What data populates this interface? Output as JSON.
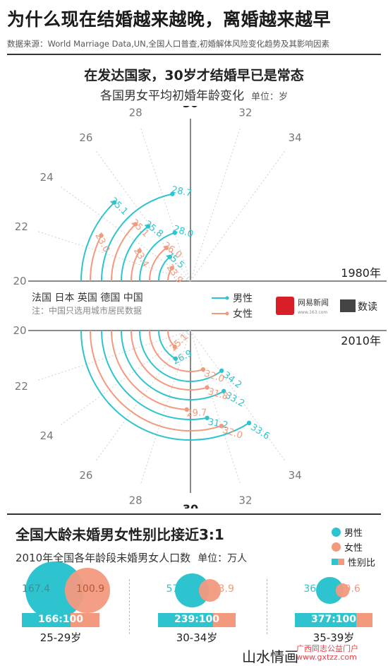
{
  "header": {
    "title": "为什么现在结婚越来越晚，离婚越来越早",
    "source": "数据来源：World Marriage Data,UN,全国人口普查,初婚解体风险变化趋势及其影响因素"
  },
  "section1": {
    "title": "在发达国家，30岁才结婚早已是常态",
    "subtitle": "各国男女平均初婚年龄变化",
    "unit": "单位：岁",
    "year_top": "1980年",
    "year_bottom": "2010年",
    "countries": "法国  日本  英国  德国  中国",
    "note": "注：中国只选用城市居民数据",
    "legend_male": "男性",
    "legend_female": "女性",
    "logo_netease": "网易新闻",
    "logo_netease_url": "www.163.com",
    "logo_shudu": "数读",
    "colors": {
      "male": "#2ec4cf",
      "female": "#f39a7e"
    }
  },
  "chart_data": {
    "type": "radial-arc",
    "axis_ticks": [
      20,
      22,
      24,
      26,
      28,
      30,
      32,
      34
    ],
    "axis_tick_labels": [
      "20",
      "22",
      "24",
      "26",
      "28",
      "30",
      "32",
      "34"
    ],
    "countries": [
      "法国",
      "日本",
      "英国",
      "德国",
      "中国"
    ],
    "years": [
      "1980年",
      "2010年"
    ],
    "series": [
      {
        "name": "男性",
        "year": "1980年",
        "values": [
          25.1,
          28.7,
          25.8,
          28.0,
          25.5
        ],
        "labels": [
          "25.1",
          "28.7",
          "25.8",
          "28.0",
          "25.5"
        ]
      },
      {
        "name": "女性",
        "year": "1980年",
        "values": [
          23.0,
          25.1,
          23.4,
          26.0,
          23.9
        ],
        "labels": [
          "23.0",
          "25.1",
          "23.4",
          "26.0",
          "23.9"
        ]
      },
      {
        "name": "男性",
        "year": "2010年",
        "values": [
          33.6,
          31.2,
          33.2,
          34.2,
          26.9
        ],
        "labels": [
          "33.6",
          "31.2",
          "33.2",
          "34.2",
          "26.9"
        ]
      },
      {
        "name": "女性",
        "year": "2010年",
        "values": [
          32.0,
          29.7,
          31.8,
          32.0,
          25.1
        ],
        "labels": [
          "32.0",
          "29.7",
          "31.8",
          "32.0",
          "25.1"
        ]
      }
    ]
  },
  "section2": {
    "title": "全国大龄未婚男女性别比接近3:1",
    "subtitle": "2010年全国各年龄段未婚男女人口数",
    "unit": "单位：万人",
    "legend": {
      "male": "男性",
      "female": "女性",
      "ratio": "性别比"
    },
    "groups": [
      {
        "age": "25-29岁",
        "male": 167.4,
        "female": 100.9,
        "male_label": "167.4",
        "female_label": "100.9",
        "ratio": "166:100"
      },
      {
        "age": "30-34岁",
        "male": 57.2,
        "female": 23.9,
        "male_label": "57.2",
        "female_label": "23.9",
        "ratio": "239:100"
      },
      {
        "age": "35-39岁",
        "male": 36.2,
        "female": 9.6,
        "male_label": "36.2",
        "female_label": "9.6",
        "ratio": "377:100"
      }
    ]
  },
  "footer": {
    "watermark": "山水情画",
    "site_name": "广西同志公益门户",
    "site_url": "www.gxtzz.com"
  }
}
